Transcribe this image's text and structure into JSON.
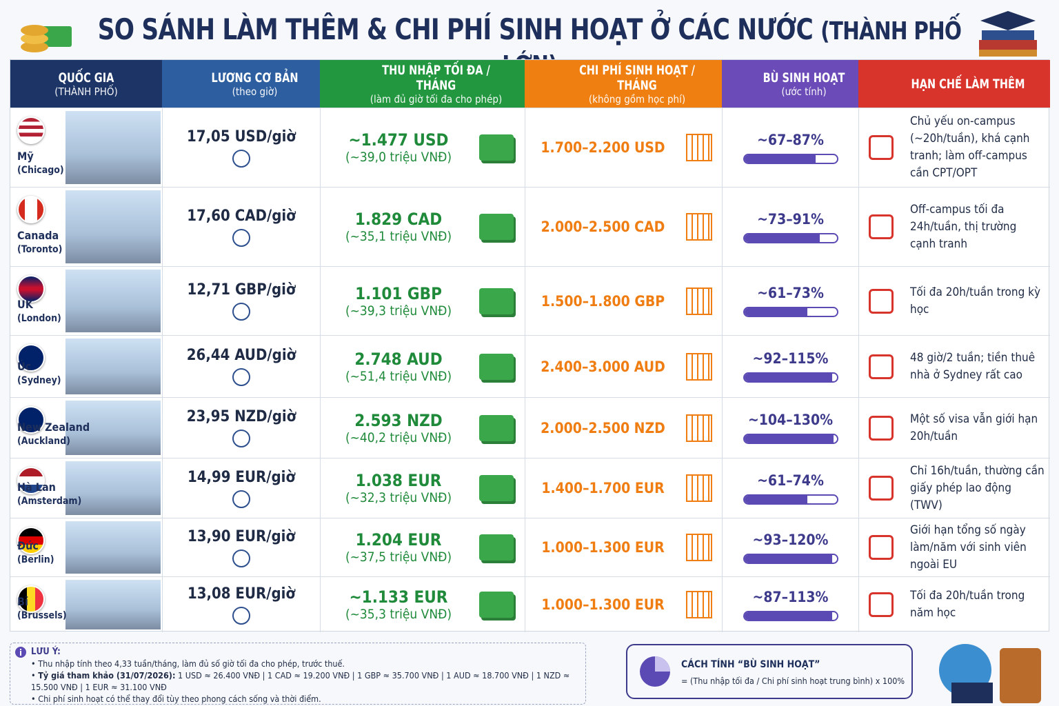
{
  "header": {
    "title": "SO SÁNH LÀM THÊM & CHI PHÍ SINH HOẠT Ở CÁC NƯỚC",
    "title_suffix": "(THÀNH PHỐ LỚN)"
  },
  "table": {
    "columns": [
      {
        "title": "QUỐC GIA",
        "subtitle": "(THÀNH PHỐ)"
      },
      {
        "title": "LƯƠNG CƠ BẢN",
        "subtitle": "(theo giờ)"
      },
      {
        "title": "THU NHẬP TỐI ĐA / THÁNG",
        "subtitle": "(làm đủ giờ tối đa cho phép)"
      },
      {
        "title": "CHI PHÍ SINH HOẠT / THÁNG",
        "subtitle": "(không gồm học phí)"
      },
      {
        "title": "BÙ SINH HOẠT",
        "subtitle": "(ước tính)"
      },
      {
        "title": "HẠN CHẾ LÀM THÊM",
        "subtitle": null
      }
    ],
    "rows": [
      {
        "country": "Mỹ",
        "city": "(Chicago)",
        "wage": "17,05 USD/giờ",
        "income": "~1.477 USD",
        "income_vnd": "(~39,0 triệu VNĐ)",
        "cost": "1.700–2.200 USD",
        "coverage": "~67–87%",
        "coverage_bar": 77,
        "limit": "Chủ yếu on-campus (~20h/tuần), khá cạnh tranh; làm off-campus cần CPT/OPT"
      },
      {
        "country": "Canada",
        "city": "(Toronto)",
        "wage": "17,60 CAD/giờ",
        "income": "1.829 CAD",
        "income_vnd": "(~35,1 triệu VNĐ)",
        "cost": "2.000–2.500 CAD",
        "coverage": "~73–91%",
        "coverage_bar": 82,
        "limit": "Off-campus tối đa 24h/tuần, thị trường cạnh tranh"
      },
      {
        "country": "UK",
        "city": "(London)",
        "wage": "12,71 GBP/giờ",
        "income": "1.101 GBP",
        "income_vnd": "(~39,3 triệu VNĐ)",
        "cost": "1.500–1.800 GBP",
        "coverage": "~61–73%",
        "coverage_bar": 68,
        "limit": "Tối đa 20h/tuần trong kỳ học"
      },
      {
        "country": "Úc",
        "city": "(Sydney)",
        "wage": "26,44 AUD/giờ",
        "income": "2.748 AUD",
        "income_vnd": "(~51,4 triệu VNĐ)",
        "cost": "2.400–3.000 AUD",
        "coverage": "~92–115%",
        "coverage_bar": 95,
        "limit": "48 giờ/2 tuần; tiền thuê nhà ở Sydney rất cao"
      },
      {
        "country": "New Zealand",
        "city": "(Auckland)",
        "wage": "23,95 NZD/giờ",
        "income": "2.593 NZD",
        "income_vnd": "(~40,2 triệu VNĐ)",
        "cost": "2.000–2.500 NZD",
        "coverage": "~104–130%",
        "coverage_bar": 97,
        "limit": "Một số visa vẫn giới hạn 20h/tuần"
      },
      {
        "country": "Hà Lan",
        "city": "(Amsterdam)",
        "wage": "14,99 EUR/giờ",
        "income": "1.038 EUR",
        "income_vnd": "(~32,3 triệu VNĐ)",
        "cost": "1.400–1.700 EUR",
        "coverage": "~61–74%",
        "coverage_bar": 68,
        "limit": "Chỉ 16h/tuần, thường cần giấy phép lao động (TWV)"
      },
      {
        "country": "Đức",
        "city": "(Berlin)",
        "wage": "13,90 EUR/giờ",
        "income": "1.204 EUR",
        "income_vnd": "(~37,5 triệu VNĐ)",
        "cost": "1.000–1.300 EUR",
        "coverage": "~93–120%",
        "coverage_bar": 95,
        "limit": "Giới hạn tổng số ngày làm/năm với sinh viên ngoài EU"
      },
      {
        "country": "Bỉ",
        "city": "(Brussels)",
        "wage": "13,08 EUR/giờ",
        "income": "~1.133 EUR",
        "income_vnd": "(~35,3 triệu VNĐ)",
        "cost": "1.000–1.300 EUR",
        "coverage": "~87–113%",
        "coverage_bar": 95,
        "limit": "Tối đa 20h/tuần trong năm học"
      }
    ]
  },
  "notes": {
    "title": "LƯU Ý:",
    "items": [
      {
        "lead": null,
        "text": "Thu nhập tính theo 4,33 tuần/tháng, làm đủ số giờ tối đa cho phép, trước thuế."
      },
      {
        "lead": "Tỷ giá tham khảo (31/07/2026):",
        "text": "1 USD ≈ 26.400 VNĐ | 1 CAD ≈ 19.200 VNĐ | 1 GBP ≈ 35.700 VNĐ | 1 AUD ≈ 18.700 VNĐ | 1 NZD ≈ 15.500 VNĐ | 1 EUR ≈ 31.100 VNĐ"
      },
      {
        "lead": null,
        "text": "Chi phí sinh hoạt có thể thay đổi tùy theo phong cách sống và thời điểm."
      }
    ]
  },
  "formula": {
    "title": "CÁCH TÍNH “BÙ SINH HOẠT”",
    "text": "= (Thu nhập tối đa / Chi phí sinh hoạt trung bình) x 100%"
  }
}
